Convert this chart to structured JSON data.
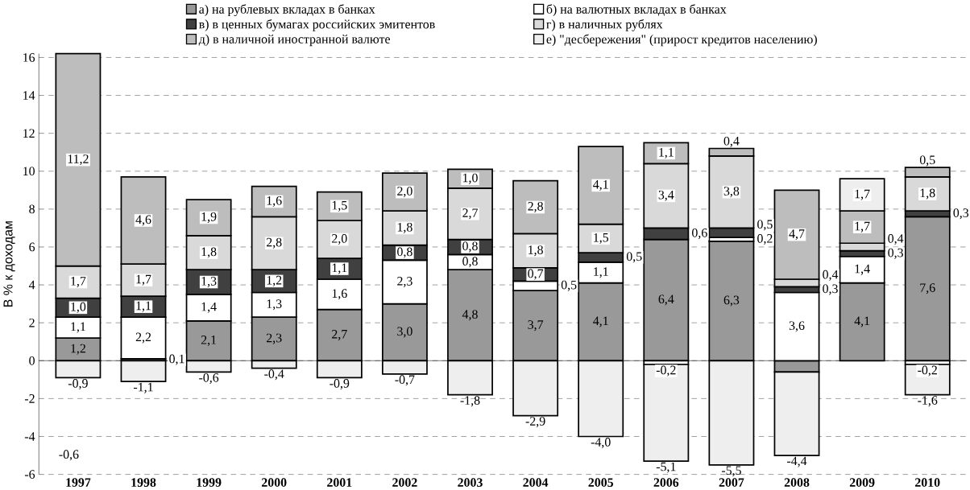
{
  "chart_data": {
    "type": "bar",
    "stacked": true,
    "ylabel": "В % к доходам",
    "categories": [
      "1997",
      "1998",
      "1999",
      "2000",
      "2001",
      "2002",
      "2003",
      "2004",
      "2005",
      "2006",
      "2007",
      "2008",
      "2009",
      "2010"
    ],
    "series": [
      {
        "name": "а) на рублевых вкладах в банках",
        "color": "#999999",
        "values": [
          1.2,
          0.1,
          2.1,
          2.3,
          2.7,
          3.0,
          4.8,
          3.7,
          4.1,
          6.4,
          6.3,
          -0.6,
          4.1,
          7.6
        ],
        "value_labels": [
          "1,2",
          "0,1",
          "2,1",
          "2,3",
          "2,7",
          "3,0",
          "4,8",
          "3,7",
          "4,1",
          "6,4",
          "6,3",
          null,
          "4,1",
          "7,6"
        ]
      },
      {
        "name": "б) на валютных вкладах в банках",
        "color": "#ffffff",
        "values": [
          1.1,
          2.2,
          1.4,
          1.3,
          1.6,
          2.3,
          0.8,
          0.5,
          1.1,
          -0.2,
          0.2,
          3.6,
          1.4,
          -0.2
        ],
        "value_labels": [
          "1,1",
          "2,2",
          "1,4",
          "1,3",
          "1,6",
          "2,3",
          "0,8",
          "0,5",
          "1,1",
          "-0,2",
          "0,2",
          "3,6",
          "1,4",
          "-0,2"
        ]
      },
      {
        "name": "в) в ценных бумагах российских эмитентов",
        "color": "#404040",
        "values": [
          1.0,
          1.1,
          1.3,
          1.2,
          1.1,
          0.8,
          0.8,
          0.7,
          0.5,
          0.6,
          0.5,
          0.3,
          0.3,
          0.3
        ],
        "value_labels": [
          "1,0",
          "1,1",
          "1,3",
          "1,2",
          "1,1",
          "0,8",
          "0,8",
          "0,7",
          "0,5",
          "0,6",
          "0,5",
          "0,3",
          "0,3",
          "0,3"
        ]
      },
      {
        "name": "г) в наличных рублях",
        "color": "#d9d9d9",
        "values": [
          1.7,
          1.7,
          1.8,
          2.8,
          2.0,
          1.8,
          2.7,
          1.8,
          1.5,
          3.4,
          3.8,
          0.4,
          0.4,
          1.8
        ],
        "value_labels": [
          "1,7",
          "1,7",
          "1,8",
          "2,8",
          "2,0",
          "1,8",
          "2,7",
          "1,8",
          "1,5",
          "3,4",
          "3,8",
          "0,4",
          "0,4",
          "1,8"
        ]
      },
      {
        "name": "д) в наличной иностранной валюте",
        "color": "#bdbdbd",
        "values": [
          11.2,
          4.6,
          1.9,
          1.6,
          1.5,
          2.0,
          1.0,
          2.8,
          4.1,
          1.1,
          0.4,
          4.7,
          1.7,
          0.5
        ],
        "value_labels": [
          "11,2",
          "4,6",
          "1,9",
          "1,6",
          "1,5",
          "2,0",
          "1,0",
          "2,8",
          "4,1",
          "1,1",
          "0,4",
          "4,7",
          "1,7",
          "0,5"
        ]
      },
      {
        "name": "е) \"десбережения\" (прирост кредитов населению)",
        "color": "#eeeeee",
        "values": [
          -0.9,
          -1.1,
          -0.6,
          -0.4,
          -0.9,
          -0.7,
          -1.8,
          -2.9,
          -4.0,
          -5.1,
          -5.5,
          -4.4,
          1.7,
          -1.6
        ],
        "value_labels": [
          "-0,9",
          "-1,1",
          "-0,6",
          "-0,4",
          "-0,9",
          "-0,7",
          "-1,8",
          "-2,9",
          "-4,0",
          "-5,1",
          "-5,5",
          "-4,4",
          "1,7",
          "-1,6"
        ]
      }
    ],
    "annotations": [
      "-0,6"
    ],
    "ylim": [
      -6,
      16.2
    ],
    "yticks": [
      -6,
      -4,
      -2,
      0,
      2,
      4,
      6,
      8,
      10,
      12,
      14,
      16
    ],
    "grid": "y",
    "legend": "top"
  }
}
